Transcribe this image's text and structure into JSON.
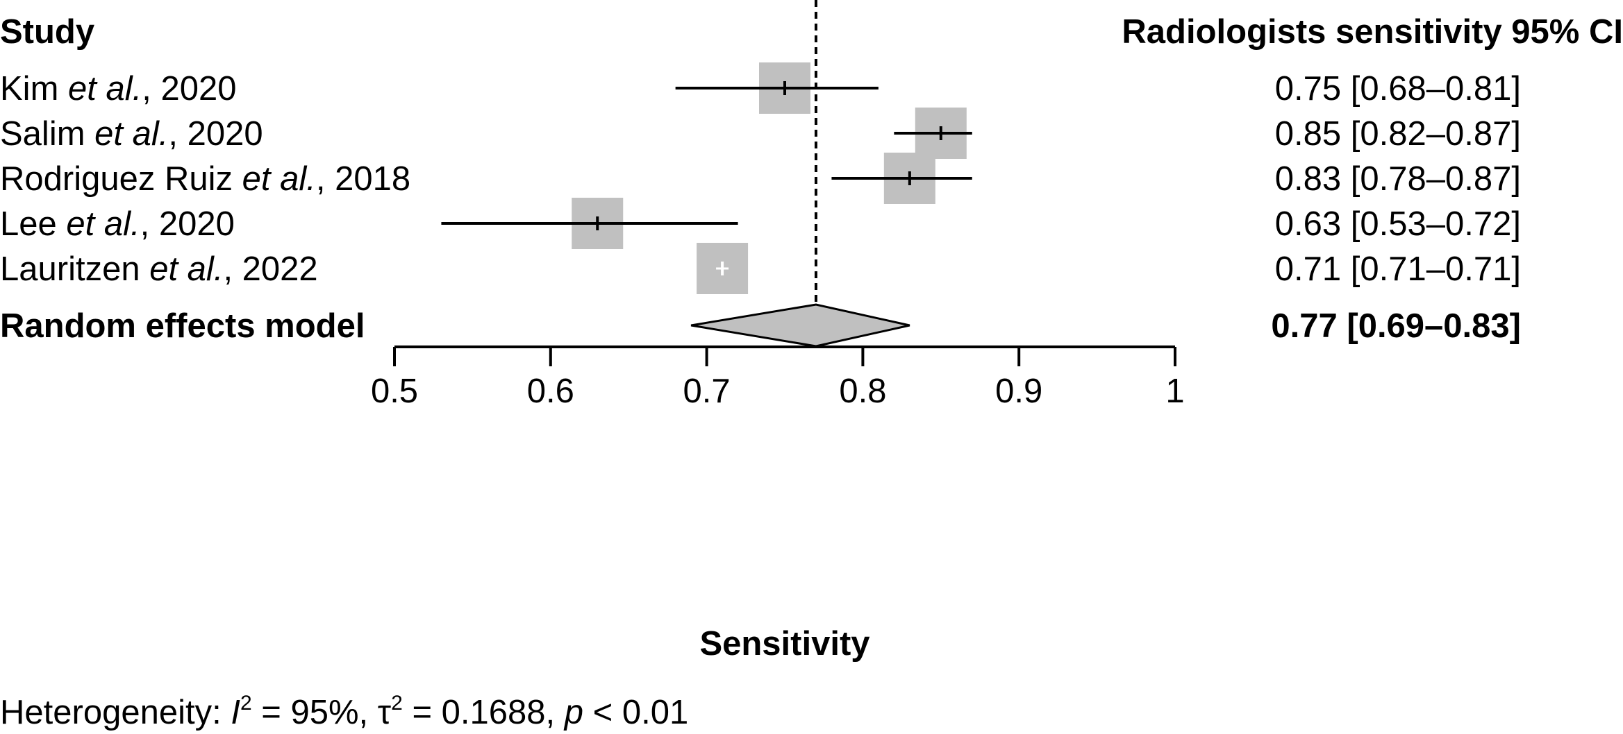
{
  "chart_data": {
    "type": "forest",
    "column_headers": {
      "study": "Study",
      "estimate": "Radiologists sensitivity 95% CI"
    },
    "studies": [
      {
        "author": "Kim",
        "etal": "et al.",
        "year": ", 2020",
        "estimate": 0.75,
        "lower": 0.68,
        "upper": 0.81,
        "ci_text": "0.75 [0.68–0.81]",
        "weight": 1.0
      },
      {
        "author": "Salim",
        "etal": "et al.",
        "year": ", 2020",
        "estimate": 0.85,
        "lower": 0.82,
        "upper": 0.87,
        "ci_text": "0.85 [0.82–0.87]",
        "weight": 1.0
      },
      {
        "author": "Rodriguez Ruiz",
        "etal": "et al.",
        "year": ", 2018",
        "estimate": 0.83,
        "lower": 0.78,
        "upper": 0.87,
        "ci_text": "0.83 [0.78–0.87]",
        "weight": 1.0
      },
      {
        "author": "Lee",
        "etal": "et al.",
        "year": ", 2020",
        "estimate": 0.63,
        "lower": 0.53,
        "upper": 0.72,
        "ci_text": "0.63 [0.53–0.72]",
        "weight": 1.0
      },
      {
        "author": "Lauritzen",
        "etal": "et al.",
        "year": ", 2022",
        "estimate": 0.71,
        "lower": 0.71,
        "upper": 0.71,
        "ci_text": "0.71 [0.71–0.71]",
        "weight": 1.0
      }
    ],
    "summary": {
      "label": "Random effects model",
      "estimate": 0.77,
      "lower": 0.69,
      "upper": 0.83,
      "ci_text": "0.77 [0.69–0.83]"
    },
    "xlabel": "Sensitivity",
    "xlim": [
      0.5,
      1.0
    ],
    "xticks": [
      0.5,
      0.6,
      0.7,
      0.8,
      0.9,
      1.0
    ],
    "xtick_labels": [
      "0.5",
      "0.6",
      "0.7",
      "0.8",
      "0.9",
      "1"
    ],
    "reference_line": 0.77,
    "heterogeneity": {
      "prefix": "Heterogeneity: ",
      "i2_symbol": "I",
      "i2_value": " = 95%, ",
      "tau_symbol": "τ",
      "tau_value": " = 0.1688, ",
      "p_symbol": "p",
      "p_value": " < 0.01"
    },
    "colors": {
      "box": "#c0c0c0",
      "diamond": "#c0c0c0",
      "line": "#000000"
    }
  }
}
